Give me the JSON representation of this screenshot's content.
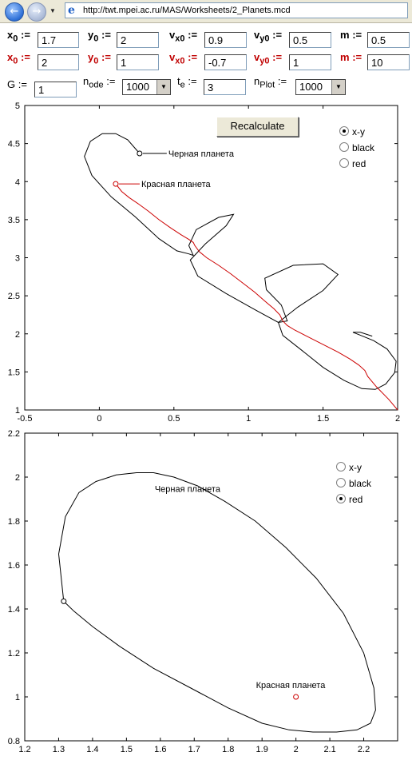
{
  "browser": {
    "url": "http://twt.mpei.ac.ru/MAS/Worksheets/2_Planets.mcd"
  },
  "params": {
    "black": {
      "x0": {
        "label": "x",
        "sub": "0",
        "value": "1.7"
      },
      "y0": {
        "label": "y",
        "sub": "0",
        "value": "2"
      },
      "vx0": {
        "label": "v",
        "sub": "x0",
        "value": "0.9"
      },
      "vy0": {
        "label": "v",
        "sub": "y0",
        "value": "0.5"
      },
      "m": {
        "label": "m",
        "value": "0.5"
      }
    },
    "red": {
      "x0": {
        "label": "x",
        "sub": "0",
        "value": "2"
      },
      "y0": {
        "label": "y",
        "sub": "0",
        "value": "1"
      },
      "vx0": {
        "label": "v",
        "sub": "x0",
        "value": "-0.7"
      },
      "vy0": {
        "label": "v",
        "sub": "y0",
        "value": "1"
      },
      "m": {
        "label": "m",
        "value": "10"
      }
    },
    "assign": ":=",
    "G": {
      "label": "G",
      "value": "1"
    },
    "node": {
      "label": "n",
      "sub": "ode",
      "value": "1000"
    },
    "te": {
      "label": "t",
      "sub": "e",
      "value": "3"
    },
    "nplot": {
      "label": "n",
      "sub": "Plot",
      "value": "1000"
    }
  },
  "recalc_label": "Recalculate",
  "colors": {
    "red": "#cc0000",
    "black": "#000000"
  },
  "chart_data": [
    {
      "type": "line",
      "title": "",
      "xlabel": "",
      "ylabel": "",
      "xlim": [
        -0.5,
        2
      ],
      "ylim": [
        1,
        5
      ],
      "xticks": [
        "-0.5",
        "0",
        "0.5",
        "1",
        "1.5",
        "2"
      ],
      "yticks": [
        "1",
        "1.5",
        "2",
        "2.5",
        "3",
        "3.5",
        "4",
        "4.5",
        "5"
      ],
      "grid": false,
      "radio_options": [
        "x-y",
        "black",
        "red"
      ],
      "radio_selected": 0,
      "annotations": {
        "black": "Черная планета",
        "red": "Красная планета"
      },
      "series": [
        {
          "color": "#000000",
          "x": [
            0.27,
            0.19,
            0.11,
            0.02,
            -0.06,
            -0.1,
            -0.05,
            0.08,
            0.24,
            0.4,
            0.52,
            0.6,
            0.63,
            0.6,
            0.65,
            0.8,
            0.9,
            0.85,
            0.71,
            0.61,
            0.66,
            0.85,
            1.05,
            1.2,
            1.26,
            1.22,
            1.12,
            1.11,
            1.3,
            1.5,
            1.6,
            1.5,
            1.33,
            1.2,
            1.23,
            1.36,
            1.5,
            1.64,
            1.76,
            1.85,
            1.92,
            1.98,
            1.99,
            1.93,
            1.84,
            1.74,
            1.7,
            1.75,
            1.83
          ],
          "y": [
            4.37,
            4.55,
            4.63,
            4.63,
            4.53,
            4.33,
            4.08,
            3.8,
            3.54,
            3.25,
            3.09,
            3.05,
            3.03,
            3.16,
            3.37,
            3.53,
            3.57,
            3.42,
            3.18,
            2.97,
            2.76,
            2.53,
            2.31,
            2.15,
            2.17,
            2.38,
            2.58,
            2.73,
            2.9,
            2.92,
            2.78,
            2.57,
            2.35,
            2.15,
            1.98,
            1.78,
            1.56,
            1.39,
            1.28,
            1.27,
            1.34,
            1.49,
            1.64,
            1.8,
            1.91,
            1.99,
            2.02,
            2.02,
            1.97
          ]
        },
        {
          "color": "#cc0000",
          "x": [
            0.11,
            0.15,
            0.2,
            0.26,
            0.33,
            0.4,
            0.48,
            0.55,
            0.6,
            0.63,
            0.64,
            0.67,
            0.72,
            0.8,
            0.88,
            0.96,
            1.04,
            1.11,
            1.17,
            1.21,
            1.23,
            1.26,
            1.31,
            1.4,
            1.5,
            1.6,
            1.68,
            1.74,
            1.78,
            1.8,
            1.86,
            1.94,
            2.0
          ],
          "y": [
            3.97,
            3.87,
            3.79,
            3.71,
            3.61,
            3.5,
            3.39,
            3.3,
            3.24,
            3.2,
            3.16,
            3.08,
            3.0,
            2.9,
            2.79,
            2.67,
            2.55,
            2.43,
            2.33,
            2.25,
            2.17,
            2.11,
            2.05,
            1.96,
            1.86,
            1.76,
            1.67,
            1.59,
            1.52,
            1.44,
            1.3,
            1.14,
            1.0
          ]
        }
      ],
      "markers": [
        {
          "name": "black",
          "x": 0.27,
          "y": 4.37
        },
        {
          "name": "red",
          "x": 0.11,
          "y": 3.97
        }
      ]
    },
    {
      "type": "line",
      "title": "",
      "xlabel": "",
      "ylabel": "",
      "xlim": [
        1.2,
        2.3
      ],
      "ylim": [
        0.8,
        2.2
      ],
      "xticks": [
        "1.2",
        "1.3",
        "1.4",
        "1.5",
        "1.6",
        "1.7",
        "1.8",
        "1.9",
        "2",
        "2.1",
        "2.2"
      ],
      "yticks": [
        "0.8",
        "1",
        "1.2",
        "1.4",
        "1.6",
        "1.8",
        "2",
        "2.2"
      ],
      "grid": false,
      "radio_options": [
        "x-y",
        "black",
        "red"
      ],
      "radio_selected": 2,
      "annotations": {
        "black": "Черная планета",
        "red": "Красная планета"
      },
      "series": [
        {
          "color": "#000000",
          "x": [
            1.315,
            1.3,
            1.32,
            1.36,
            1.41,
            1.47,
            1.53,
            1.58,
            1.64,
            1.71,
            1.79,
            1.88,
            1.97,
            2.06,
            2.14,
            2.2,
            2.23,
            2.235,
            2.22,
            2.18,
            2.12,
            2.05,
            1.98,
            1.9,
            1.8,
            1.69,
            1.58,
            1.48,
            1.4,
            1.345,
            1.315
          ],
          "y": [
            1.435,
            1.65,
            1.82,
            1.93,
            1.98,
            2.01,
            2.02,
            2.02,
            2.0,
            1.96,
            1.89,
            1.8,
            1.68,
            1.54,
            1.38,
            1.2,
            1.04,
            0.94,
            0.88,
            0.85,
            0.84,
            0.84,
            0.85,
            0.88,
            0.95,
            1.04,
            1.13,
            1.23,
            1.32,
            1.39,
            1.435
          ]
        }
      ],
      "markers": [
        {
          "name": "black",
          "x": 1.315,
          "y": 1.435
        },
        {
          "name": "red",
          "x": 2.0,
          "y": 1.0
        }
      ]
    }
  ]
}
